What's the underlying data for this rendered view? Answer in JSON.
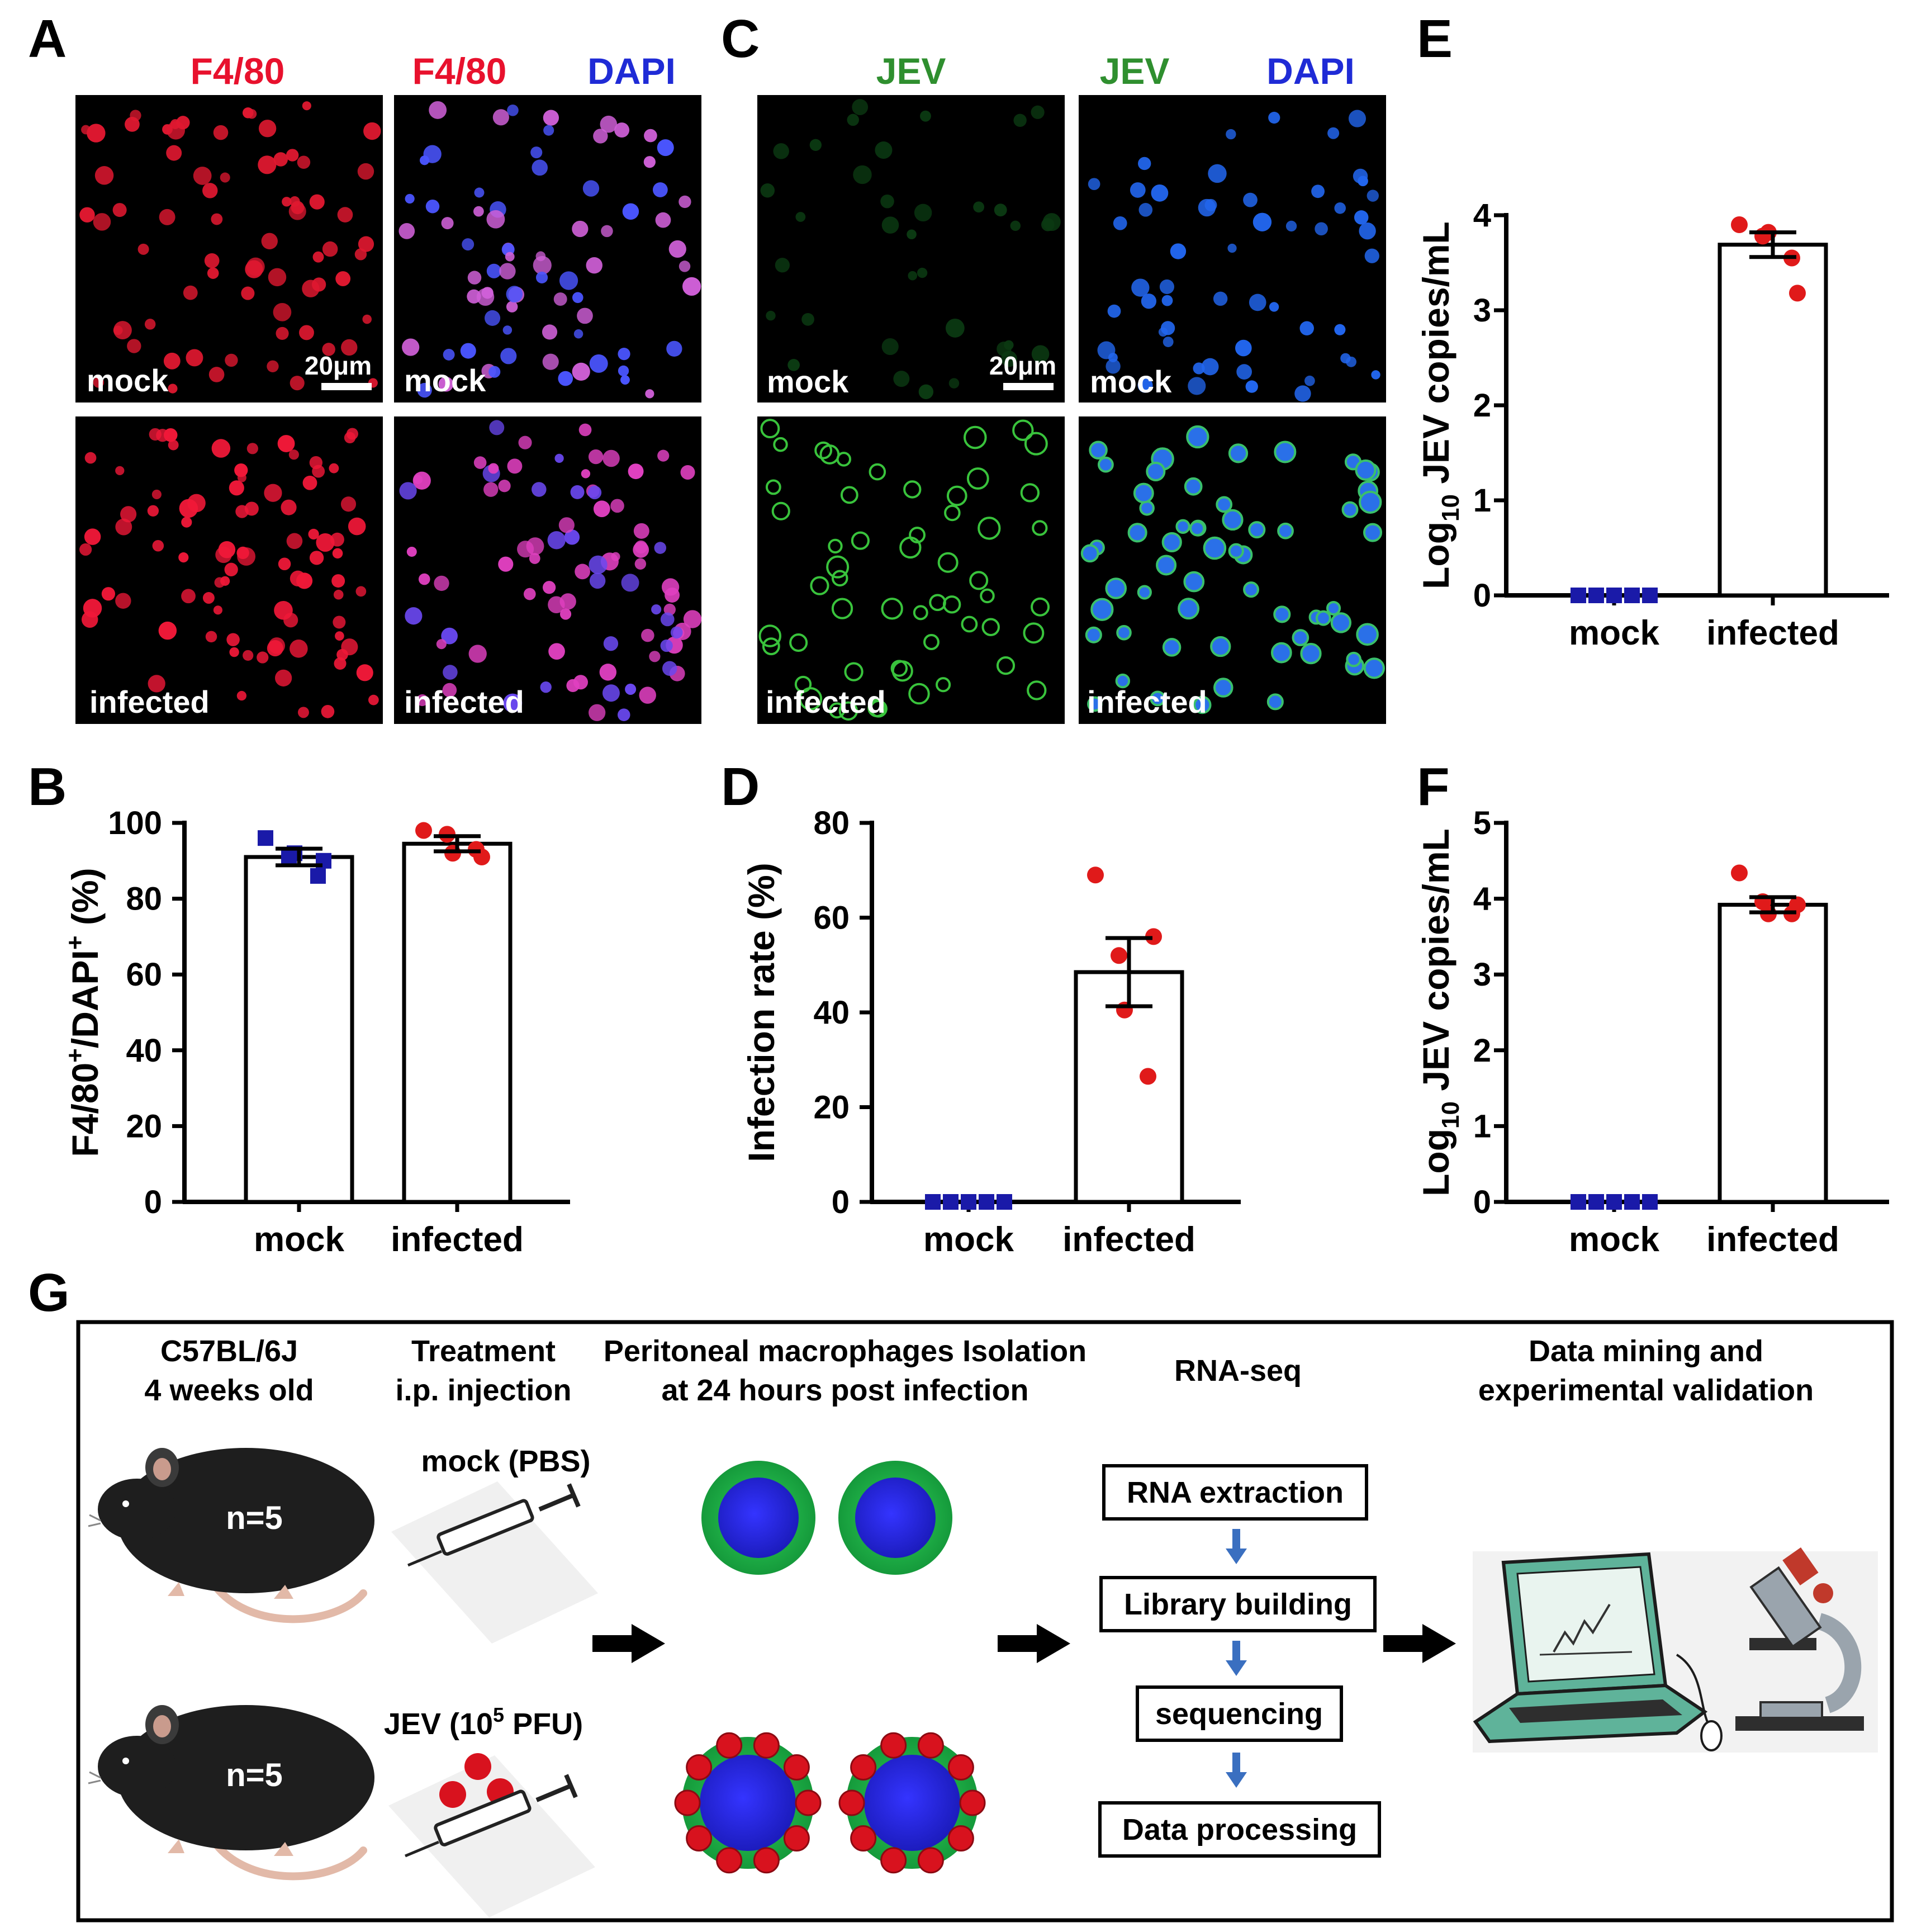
{
  "panels": {
    "A": {
      "letter": "A",
      "headers": {
        "left": "F4/80",
        "right_a": "F4/80",
        "right_b": "DAPI"
      },
      "labels": {
        "top_left": "mock",
        "top_right": "mock",
        "bottom_left": "infected",
        "bottom_right": "infected"
      },
      "scale_bar": "20μm"
    },
    "C": {
      "letter": "C",
      "headers": {
        "left": "JEV",
        "right_a": "JEV",
        "right_b": "DAPI"
      },
      "labels": {
        "top_left": "mock",
        "top_right": "mock",
        "bottom_left": "infected",
        "bottom_right": "infected"
      },
      "scale_bar": "20μm"
    },
    "B": {
      "letter": "B"
    },
    "D": {
      "letter": "D"
    },
    "E": {
      "letter": "E"
    },
    "F": {
      "letter": "F"
    },
    "G": {
      "letter": "G"
    }
  },
  "colors": {
    "f480_red": "#e8112d",
    "dapi_blue": "#1f2bd6",
    "jev_green": "#2f8f2f",
    "mock_point": "#1a1aa8",
    "infected_point": "#e01a1a",
    "cell_green": "#22b14c",
    "cell_blue": "#2323e0",
    "virus_red": "#d8121e"
  },
  "chart_data": [
    {
      "id": "B",
      "type": "bar",
      "categories": [
        "mock",
        "infected"
      ],
      "values": [
        91,
        94.5
      ],
      "sem": [
        2.2,
        2.0
      ],
      "points": [
        [
          96,
          91,
          92,
          86,
          90
        ],
        [
          98,
          97,
          92,
          93,
          91
        ]
      ],
      "ylabel_parts": [
        "F4/80",
        "+",
        "/DAPI",
        "+",
        " (%)"
      ],
      "ylim": [
        0,
        100
      ],
      "ticks": [
        "0",
        "20",
        "40",
        "60",
        "80",
        "100"
      ]
    },
    {
      "id": "D",
      "type": "bar",
      "categories": [
        "mock",
        "infected"
      ],
      "values": [
        0,
        48.5
      ],
      "sem": [
        0,
        7.2
      ],
      "points": [
        [
          0,
          0,
          0,
          0,
          0
        ],
        [
          69,
          52,
          40.5,
          26.5,
          56
        ]
      ],
      "ylabel": "Infection rate (%)",
      "ylim": [
        0,
        80
      ],
      "ticks": [
        "0",
        "20",
        "40",
        "60",
        "80"
      ]
    },
    {
      "id": "E",
      "type": "bar",
      "categories": [
        "mock",
        "infected"
      ],
      "values": [
        0,
        3.69
      ],
      "sem": [
        0,
        0.13
      ],
      "points": [
        [
          0,
          0,
          0,
          0,
          0
        ],
        [
          3.9,
          3.78,
          3.82,
          3.55,
          3.18
        ]
      ],
      "ylabel_parts": [
        "Log",
        "10",
        " JEV copies/mL"
      ],
      "ylim": [
        0,
        4
      ],
      "ticks": [
        "0",
        "1",
        "2",
        "3",
        "4"
      ]
    },
    {
      "id": "F",
      "type": "bar",
      "categories": [
        "mock",
        "infected"
      ],
      "values": [
        0,
        3.92
      ],
      "sem": [
        0,
        0.1
      ],
      "points": [
        [
          0,
          0,
          0,
          0,
          0
        ],
        [
          4.34,
          3.96,
          3.8,
          3.8,
          3.92
        ]
      ],
      "ylabel_parts": [
        "Log",
        "10",
        " JEV copies/mL"
      ],
      "ylim": [
        0,
        5
      ],
      "ticks": [
        "0",
        "1",
        "2",
        "3",
        "4",
        "5"
      ]
    }
  ],
  "workflow": {
    "col1_title": [
      "C57BL/6J",
      "4 weeks old"
    ],
    "col2_title": [
      "Treatment",
      "i.p. injection"
    ],
    "col3_title": [
      "Peritoneal macrophages Isolation",
      "at 24 hours post infection"
    ],
    "col4_title": "RNA-seq",
    "col5_title": [
      "Data mining and",
      "experimental validation"
    ],
    "mouse_top_label": "n=5",
    "mouse_bottom_label": "n=5",
    "mock_label": "mock (PBS)",
    "jev_label": {
      "pre": "JEV (10",
      "sup": "5",
      "post": " PFU)"
    },
    "steps": [
      "RNA extraction",
      "Library building",
      "sequencing",
      "Data processing"
    ]
  }
}
